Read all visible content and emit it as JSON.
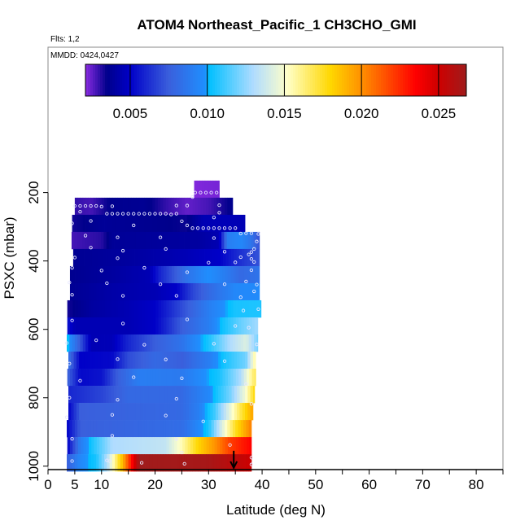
{
  "chart_data": {
    "type": "heatmap",
    "title": "ATOM4 Northeast_Pacific_1 CH3CHO_GMI",
    "flights_label": "Flts: 1,2",
    "dates_label": "MMDD: 0424,0427",
    "xlabel": "Latitude (deg N)",
    "ylabel": "PSXC (mbar)",
    "xlim": [
      0,
      85
    ],
    "ylim": [
      1010,
      -225
    ],
    "x_ticks": [
      0,
      5,
      10,
      15,
      20,
      25,
      30,
      35,
      40,
      45,
      50,
      55,
      60,
      65,
      70,
      75,
      80,
      85
    ],
    "x_tick_labels": [
      "0",
      "5",
      "10",
      "20",
      "30",
      "40",
      "50",
      "60",
      "70",
      "80"
    ],
    "x_tick_label_values": [
      0,
      5,
      10,
      20,
      30,
      40,
      50,
      60,
      70,
      80
    ],
    "y_ticks": [
      200,
      400,
      600,
      800,
      1000
    ],
    "y_tick_labels": [
      "200",
      "400",
      "600",
      "800",
      "1000"
    ],
    "colorbar": {
      "range": [
        0.0021,
        0.0268
      ],
      "tick_values": [
        0.005,
        0.01,
        0.015,
        0.02,
        0.025
      ],
      "tick_labels": [
        "0.005",
        "0.010",
        "0.015",
        "0.020",
        "0.025"
      ],
      "stops": [
        [
          0.0021,
          "#8a2be2"
        ],
        [
          0.0035,
          "#00008b"
        ],
        [
          0.005,
          "#0000c8"
        ],
        [
          0.0075,
          "#3a5fdc"
        ],
        [
          0.0099,
          "#1e90ff"
        ],
        [
          0.0101,
          "#00bfff"
        ],
        [
          0.013,
          "#b0dcff"
        ],
        [
          0.0152,
          "#ffffc8"
        ],
        [
          0.018,
          "#ffd700"
        ],
        [
          0.0201,
          "#ff8c00"
        ],
        [
          0.0235,
          "#ff0000"
        ],
        [
          0.025,
          "#cd0000"
        ],
        [
          0.0268,
          "#a01c1c"
        ]
      ]
    },
    "bin_width_mbar": 50,
    "rows": [
      {
        "p_top": 165,
        "lat": [
          27.3,
          32.0
        ],
        "ctrl": [
          [
            27.3,
            0.0022
          ],
          [
            32,
            0.0023
          ]
        ]
      },
      {
        "p_top": 215,
        "lat": [
          5.0,
          34.5
        ],
        "ctrl": [
          [
            5,
            0.003
          ],
          [
            8,
            0.0028
          ],
          [
            12,
            0.0036
          ],
          [
            18,
            0.0037
          ],
          [
            22,
            0.003
          ],
          [
            26,
            0.0025
          ],
          [
            30,
            0.0028
          ],
          [
            34.5,
            0.0036
          ]
        ]
      },
      {
        "p_top": 265,
        "lat": [
          4.5,
          36.8
        ],
        "ctrl": [
          [
            4.5,
            0.0033
          ],
          [
            10,
            0.0038
          ],
          [
            20,
            0.0036
          ],
          [
            26,
            0.0034
          ],
          [
            29,
            0.0045
          ],
          [
            33,
            0.0046
          ],
          [
            36.8,
            0.0045
          ]
        ]
      },
      {
        "p_top": 315,
        "lat": [
          4.4,
          39.5
        ],
        "ctrl": [
          [
            4.4,
            0.0028
          ],
          [
            10,
            0.0031
          ],
          [
            12,
            0.0038
          ],
          [
            28,
            0.004
          ],
          [
            32,
            0.0045
          ],
          [
            33.5,
            0.009
          ],
          [
            36,
            0.0095
          ],
          [
            38,
            0.0085
          ],
          [
            39.5,
            0.007
          ]
        ]
      },
      {
        "p_top": 365,
        "lat": [
          4.7,
          39.5
        ],
        "ctrl": [
          [
            4.7,
            0.0037
          ],
          [
            15,
            0.004
          ],
          [
            25,
            0.0045
          ],
          [
            32,
            0.005
          ],
          [
            35,
            0.006
          ],
          [
            39.5,
            0.0072
          ]
        ]
      },
      {
        "p_top": 415,
        "lat": [
          4.1,
          39.5
        ],
        "ctrl": [
          [
            4.1,
            0.0036
          ],
          [
            12,
            0.004
          ],
          [
            19,
            0.0045
          ],
          [
            21,
            0.006
          ],
          [
            26,
            0.0085
          ],
          [
            30,
            0.0098
          ],
          [
            33,
            0.009
          ],
          [
            36,
            0.008
          ],
          [
            39.5,
            0.0085
          ]
        ]
      },
      {
        "p_top": 465,
        "lat": [
          4.1,
          39.5
        ],
        "ctrl": [
          [
            4.1,
            0.0037
          ],
          [
            12,
            0.0042
          ],
          [
            20,
            0.0045
          ],
          [
            24,
            0.005
          ],
          [
            27,
            0.0068
          ],
          [
            30,
            0.008
          ],
          [
            35,
            0.0095
          ],
          [
            39.5,
            0.0096
          ]
        ]
      },
      {
        "p_top": 515,
        "lat": [
          3.6,
          39.8
        ],
        "ctrl": [
          [
            3.6,
            0.0033
          ],
          [
            8,
            0.004
          ],
          [
            15,
            0.0045
          ],
          [
            20,
            0.005
          ],
          [
            25,
            0.007
          ],
          [
            30,
            0.009
          ],
          [
            35,
            0.0105
          ],
          [
            39.8,
            0.0106
          ]
        ]
      },
      {
        "p_top": 565,
        "lat": [
          3.6,
          39.2
        ],
        "ctrl": [
          [
            3.6,
            0.0055
          ],
          [
            5,
            0.0045
          ],
          [
            15,
            0.0045
          ],
          [
            20,
            0.005
          ],
          [
            25,
            0.0075
          ],
          [
            30,
            0.009
          ],
          [
            33,
            0.0105
          ],
          [
            36,
            0.0118
          ],
          [
            39.2,
            0.0128
          ]
        ]
      },
      {
        "p_top": 615,
        "lat": [
          3.5,
          39.2
        ],
        "ctrl": [
          [
            3.5,
            0.0104
          ],
          [
            5.5,
            0.008
          ],
          [
            8,
            0.0045
          ],
          [
            12,
            0.0046
          ],
          [
            15,
            0.006
          ],
          [
            20,
            0.0075
          ],
          [
            25,
            0.0085
          ],
          [
            30,
            0.0105
          ],
          [
            34,
            0.013
          ],
          [
            37,
            0.0142
          ],
          [
            39.2,
            0.012
          ]
        ]
      },
      {
        "p_top": 665,
        "lat": [
          3.8,
          38.8
        ],
        "ctrl": [
          [
            3.8,
            0.0085
          ],
          [
            6,
            0.005
          ],
          [
            12,
            0.0052
          ],
          [
            15,
            0.007
          ],
          [
            20,
            0.008
          ],
          [
            25,
            0.0075
          ],
          [
            30,
            0.009
          ],
          [
            33,
            0.0105
          ],
          [
            37,
            0.012
          ],
          [
            38.8,
            0.016
          ]
        ]
      },
      {
        "p_top": 715,
        "lat": [
          3.6,
          38.8
        ],
        "ctrl": [
          [
            3.6,
            0.0078
          ],
          [
            6,
            0.0052
          ],
          [
            10,
            0.0055
          ],
          [
            13,
            0.0075
          ],
          [
            17,
            0.009
          ],
          [
            25,
            0.0088
          ],
          [
            28,
            0.0095
          ],
          [
            32,
            0.0105
          ],
          [
            36,
            0.013
          ],
          [
            38.8,
            0.017
          ]
        ]
      },
      {
        "p_top": 765,
        "lat": [
          3.8,
          38.6
        ],
        "ctrl": [
          [
            3.8,
            0.006
          ],
          [
            10,
            0.0068
          ],
          [
            15,
            0.008
          ],
          [
            25,
            0.008
          ],
          [
            30,
            0.0095
          ],
          [
            34,
            0.012
          ],
          [
            37,
            0.015
          ],
          [
            38.6,
            0.018
          ]
        ]
      },
      {
        "p_top": 815,
        "lat": [
          3.8,
          38.3
        ],
        "ctrl": [
          [
            3.8,
            0.005
          ],
          [
            6,
            0.0075
          ],
          [
            25,
            0.008
          ],
          [
            28,
            0.009
          ],
          [
            31,
            0.011
          ],
          [
            34,
            0.0145
          ],
          [
            36,
            0.017
          ],
          [
            38.3,
            0.0195
          ]
        ]
      },
      {
        "p_top": 865,
        "lat": [
          3.5,
          38.0
        ],
        "ctrl": [
          [
            3.5,
            0.005
          ],
          [
            6,
            0.0075
          ],
          [
            25,
            0.0082
          ],
          [
            27,
            0.009
          ],
          [
            30,
            0.0105
          ],
          [
            32,
            0.0135
          ],
          [
            35,
            0.0175
          ],
          [
            38,
            0.0205
          ]
        ]
      },
      {
        "p_top": 915,
        "lat": [
          3.6,
          38.0
        ],
        "ctrl": [
          [
            3.6,
            0.005
          ],
          [
            6,
            0.009
          ],
          [
            9,
            0.011
          ],
          [
            12,
            0.013
          ],
          [
            22,
            0.0135
          ],
          [
            25,
            0.0155
          ],
          [
            28,
            0.018
          ],
          [
            31,
            0.0198
          ],
          [
            34,
            0.022
          ],
          [
            38,
            0.0235
          ]
        ]
      },
      {
        "p_top": 965,
        "lat": [
          3.5,
          38.0
        ],
        "ctrl": [
          [
            3.5,
            0.0075
          ],
          [
            6,
            0.0095
          ],
          [
            9,
            0.0105
          ],
          [
            11,
            0.013
          ],
          [
            12.5,
            0.016
          ],
          [
            14,
            0.019
          ],
          [
            15.5,
            0.023
          ],
          [
            17,
            0.0268
          ],
          [
            30,
            0.0265
          ],
          [
            33,
            0.026
          ],
          [
            38,
            0.025
          ]
        ]
      }
    ],
    "samples": [
      [
        27.5,
        200
      ],
      [
        28.5,
        200
      ],
      [
        29.5,
        200
      ],
      [
        30.5,
        200
      ],
      [
        31.5,
        200
      ],
      [
        27,
        213
      ],
      [
        32,
        237
      ],
      [
        5,
        239
      ],
      [
        6,
        239
      ],
      [
        7,
        239
      ],
      [
        8,
        239
      ],
      [
        9,
        239
      ],
      [
        10,
        241
      ],
      [
        12,
        240
      ],
      [
        24,
        238
      ],
      [
        26,
        238
      ],
      [
        6,
        256
      ],
      [
        11,
        262
      ],
      [
        12,
        262
      ],
      [
        13,
        262
      ],
      [
        14,
        262
      ],
      [
        15,
        262
      ],
      [
        16,
        262
      ],
      [
        17,
        262
      ],
      [
        18,
        262
      ],
      [
        19,
        262
      ],
      [
        20,
        262
      ],
      [
        21,
        262
      ],
      [
        22,
        262
      ],
      [
        23,
        264
      ],
      [
        24,
        262
      ],
      [
        31,
        273
      ],
      [
        32,
        259
      ],
      [
        4.5,
        290
      ],
      [
        8,
        283
      ],
      [
        16,
        296
      ],
      [
        25,
        284
      ],
      [
        26,
        296
      ],
      [
        27,
        304
      ],
      [
        28,
        304
      ],
      [
        29,
        304
      ],
      [
        30,
        304
      ],
      [
        31,
        304
      ],
      [
        32,
        304
      ],
      [
        33,
        304
      ],
      [
        34,
        304
      ],
      [
        35,
        304
      ],
      [
        7,
        326
      ],
      [
        13,
        331
      ],
      [
        21,
        331
      ],
      [
        31,
        333
      ],
      [
        36,
        320
      ],
      [
        37,
        319
      ],
      [
        38,
        319
      ],
      [
        39.3,
        321
      ],
      [
        39,
        343
      ],
      [
        8,
        361
      ],
      [
        14,
        370
      ],
      [
        22,
        365
      ],
      [
        33,
        373
      ],
      [
        38.5,
        365
      ],
      [
        38,
        374
      ],
      [
        5,
        390
      ],
      [
        13,
        392
      ],
      [
        30,
        405
      ],
      [
        38,
        394
      ],
      [
        37.5,
        381
      ],
      [
        36,
        389
      ],
      [
        4.5,
        420
      ],
      [
        10,
        428
      ],
      [
        18,
        420
      ],
      [
        26,
        433
      ],
      [
        38.5,
        403
      ],
      [
        35,
        404
      ],
      [
        4,
        463
      ],
      [
        11,
        465
      ],
      [
        21,
        468
      ],
      [
        33,
        468
      ],
      [
        37,
        460
      ],
      [
        39,
        469
      ],
      [
        38,
        427
      ],
      [
        4.5,
        499
      ],
      [
        14,
        502
      ],
      [
        24,
        502
      ],
      [
        36,
        506
      ],
      [
        38.5,
        489
      ],
      [
        36.5,
        545
      ],
      [
        4.5,
        574
      ],
      [
        14,
        583
      ],
      [
        26,
        571
      ],
      [
        35,
        590
      ],
      [
        39.3,
        541
      ],
      [
        37.5,
        595
      ],
      [
        3.5,
        640
      ],
      [
        9,
        632
      ],
      [
        18,
        645
      ],
      [
        31,
        642
      ],
      [
        39,
        644
      ],
      [
        4,
        700
      ],
      [
        13,
        687
      ],
      [
        22,
        688
      ],
      [
        33,
        693
      ],
      [
        6,
        750
      ],
      [
        16,
        740
      ],
      [
        25,
        743
      ],
      [
        37,
        760
      ],
      [
        4,
        800
      ],
      [
        13,
        806
      ],
      [
        24,
        803
      ],
      [
        38,
        818
      ],
      [
        3.5,
        857
      ],
      [
        12,
        850
      ],
      [
        22,
        852
      ],
      [
        29,
        869
      ],
      [
        4.5,
        920
      ],
      [
        12,
        911
      ],
      [
        24,
        921
      ],
      [
        34,
        938
      ],
      [
        38,
        975
      ],
      [
        4.5,
        985
      ],
      [
        11,
        983
      ],
      [
        11.5,
        985
      ],
      [
        17.5,
        990
      ],
      [
        25,
        960
      ],
      [
        25.5,
        993
      ],
      [
        38,
        995
      ]
    ],
    "arrow": {
      "lat": 34.7,
      "p_from": 955,
      "p_to": 1005
    }
  }
}
